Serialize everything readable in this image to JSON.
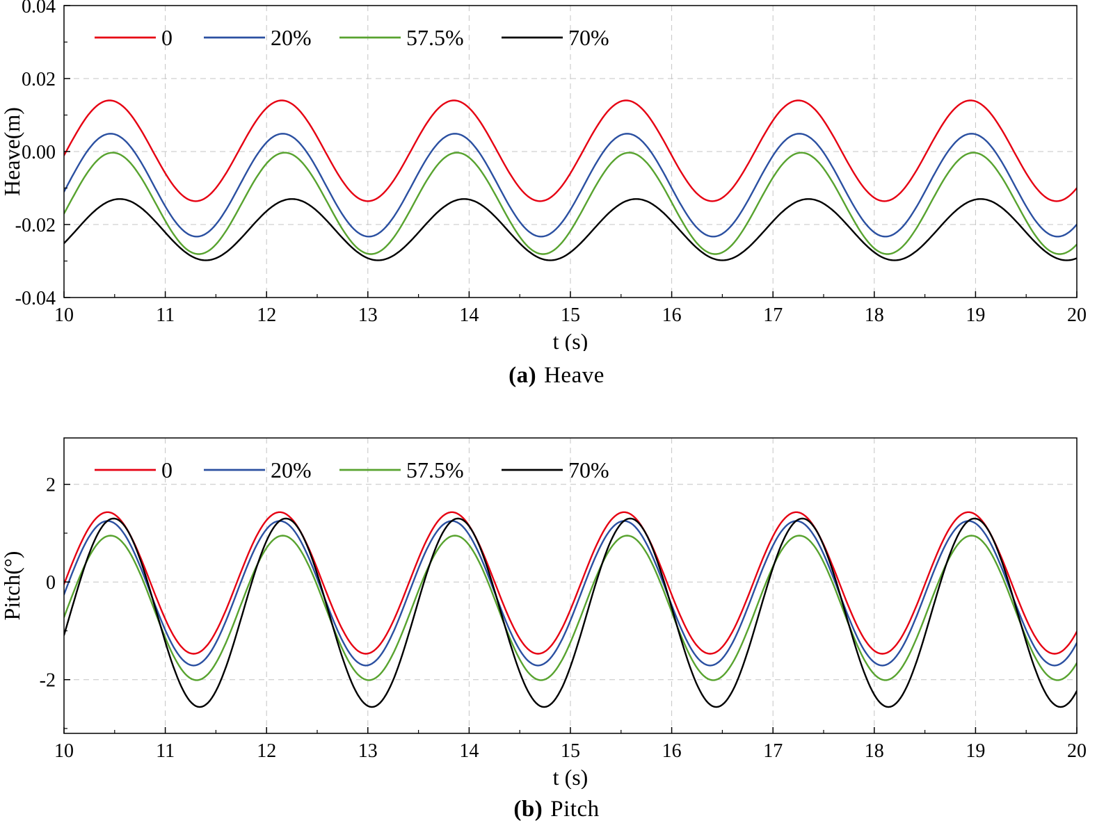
{
  "page": {
    "background": "#ffffff"
  },
  "chart_data": [
    {
      "id": "heave",
      "type": "line",
      "xlabel": "t (s)",
      "ylabel": "Heave(m)",
      "caption": {
        "prefix": "(a)",
        "label": "Heave"
      },
      "xlim": [
        10,
        20
      ],
      "ylim": [
        -0.04,
        0.04
      ],
      "xticks": [
        10,
        11,
        12,
        13,
        14,
        15,
        16,
        17,
        18,
        19,
        20
      ],
      "yticks": [
        -0.04,
        -0.02,
        0,
        0.02,
        0.04
      ],
      "ytick_decimals": 2,
      "grid": {
        "dashed": true,
        "color": "#c4c4c4"
      },
      "legend": {
        "position": "top-left",
        "entries": [
          "0",
          "20%",
          "57.5%",
          "70%"
        ]
      },
      "series": [
        {
          "name": "0",
          "color": "#e60012",
          "model": "sinusoid",
          "mean": 0.0002,
          "amplitude": 0.0138,
          "period_s": 1.7,
          "t_peak": 10.45
        },
        {
          "name": "20%",
          "color": "#2b50a1",
          "model": "sinusoid",
          "mean": -0.0092,
          "amplitude": 0.0141,
          "period_s": 1.7,
          "t_peak": 10.46
        },
        {
          "name": "57.5%",
          "color": "#58a32f",
          "model": "sinusoid",
          "mean": -0.0142,
          "amplitude": 0.0139,
          "period_s": 1.7,
          "t_peak": 10.48
        },
        {
          "name": "70%",
          "color": "#000000",
          "model": "sinusoid",
          "mean": -0.0214,
          "amplitude": 0.0084,
          "period_s": 1.7,
          "t_peak": 10.55
        }
      ]
    },
    {
      "id": "pitch",
      "type": "line",
      "xlabel": "t (s)",
      "ylabel": "Pitch(°)",
      "caption": {
        "prefix": "(b)",
        "label": "Pitch"
      },
      "xlim": [
        10,
        20
      ],
      "ylim": [
        -3.1,
        2.95
      ],
      "xticks": [
        10,
        11,
        12,
        13,
        14,
        15,
        16,
        17,
        18,
        19,
        20
      ],
      "yticks": [
        -2,
        0,
        2
      ],
      "ytick_decimals": 0,
      "grid": {
        "dashed": true,
        "color": "#c4c4c4"
      },
      "legend": {
        "position": "top-left",
        "entries": [
          "0",
          "20%",
          "57.5%",
          "70%"
        ]
      },
      "series": [
        {
          "name": "0",
          "color": "#e60012",
          "model": "sinusoid",
          "mean": -0.02,
          "amplitude": 1.45,
          "period_s": 1.7,
          "t_peak": 10.43
        },
        {
          "name": "20%",
          "color": "#2b50a1",
          "model": "sinusoid",
          "mean": -0.23,
          "amplitude": 1.48,
          "period_s": 1.7,
          "t_peak": 10.43
        },
        {
          "name": "57.5%",
          "color": "#58a32f",
          "model": "sinusoid",
          "mean": -0.53,
          "amplitude": 1.48,
          "period_s": 1.7,
          "t_peak": 10.46
        },
        {
          "name": "70%",
          "color": "#000000",
          "model": "sinusoid",
          "mean": -0.63,
          "amplitude": 1.93,
          "period_s": 1.7,
          "t_peak": 10.49
        }
      ]
    }
  ]
}
